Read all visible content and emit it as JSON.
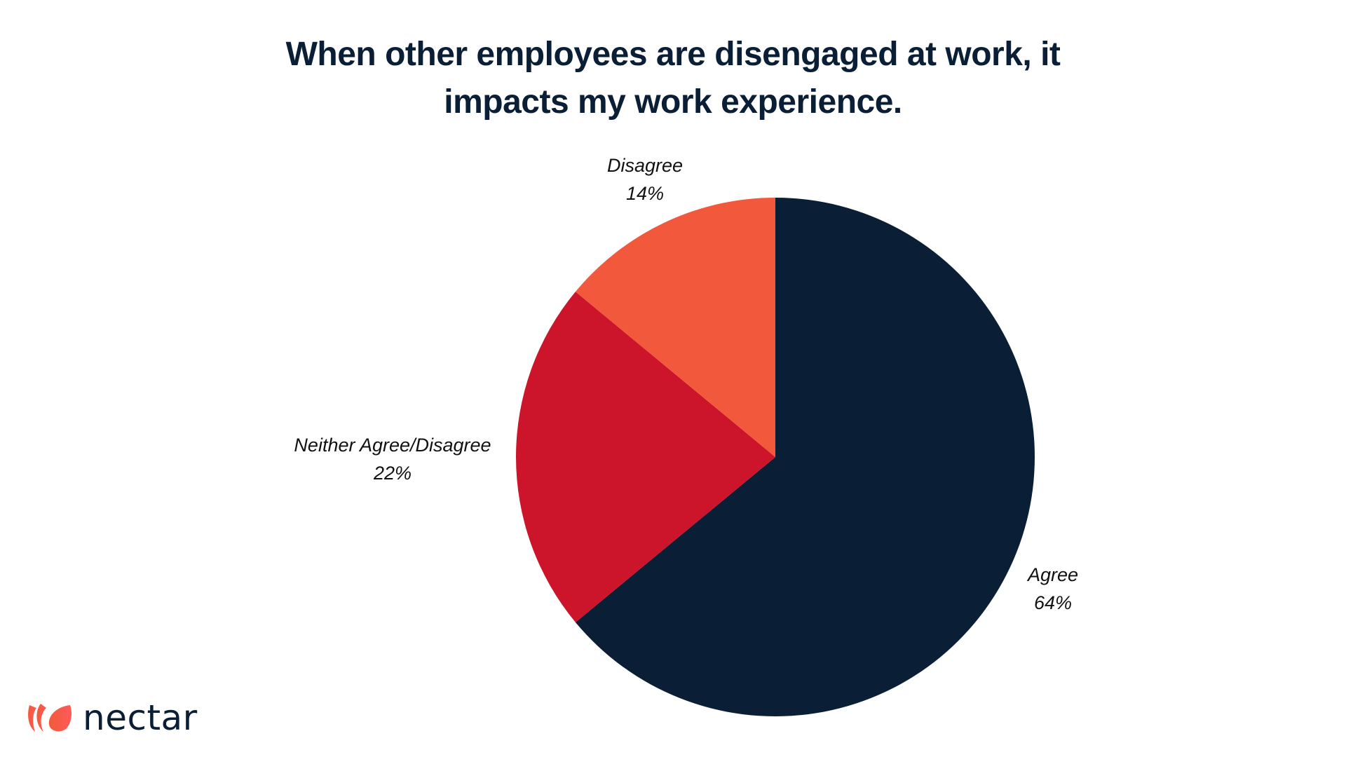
{
  "title": {
    "line1": "When other employees are disengaged at work, it",
    "line2": "impacts my work experience."
  },
  "brand": {
    "name": "nectar",
    "icon": "tulip-petals-icon",
    "color": "#f25a3b"
  },
  "chart_data": {
    "type": "pie",
    "title": "When other employees are disengaged at work, it impacts my work experience.",
    "categories": [
      "Agree",
      "Neither Agree/Disagree",
      "Disagree"
    ],
    "values": [
      64,
      22,
      14
    ],
    "unit": "%",
    "colors": [
      "#0a1f36",
      "#cc142b",
      "#f2583b"
    ],
    "start_angle": "12 o'clock, clockwise",
    "legend": "none (inline slice labels)"
  },
  "labels": {
    "agree": {
      "name": "Agree",
      "value": "64%"
    },
    "neither": {
      "name": "Neither Agree/Disagree",
      "value": "22%"
    },
    "disagree": {
      "name": "Disagree",
      "value": "14%"
    }
  }
}
